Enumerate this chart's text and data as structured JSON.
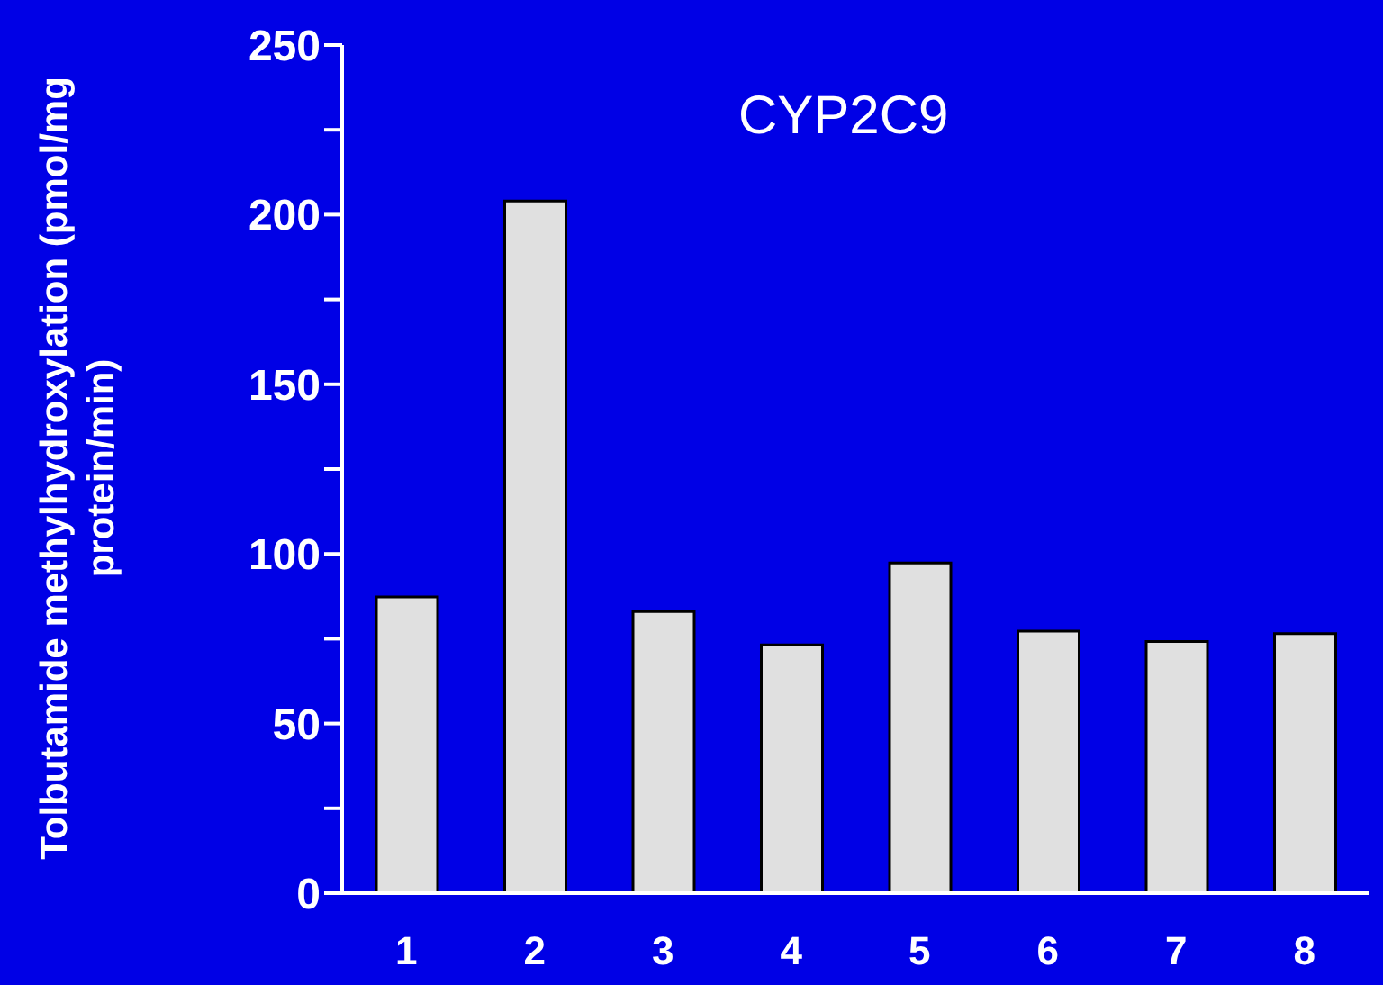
{
  "chart_data": {
    "type": "bar",
    "title": "CYP2C9",
    "ylabel": "Tolbutamide methylhydroxylation (pmol/mg protein/min)",
    "categories": [
      "1",
      "2",
      "3",
      "4",
      "5",
      "6",
      "7",
      "8"
    ],
    "values": [
      87.3,
      204,
      83,
      73.2,
      97.3,
      77.2,
      74.2,
      76.5
    ],
    "color": "#e0e0e0",
    "ylim": [
      0,
      250
    ],
    "yticks": [
      0,
      {
        "value": 25,
        "label": null
      },
      50,
      {
        "value": 75,
        "label": null
      },
      100,
      {
        "value": 125,
        "label": null
      },
      150,
      {
        "value": 175,
        "label": null
      },
      200,
      {
        "value": 225,
        "label": null
      },
      250
    ],
    "grid": false,
    "legend": false
  }
}
